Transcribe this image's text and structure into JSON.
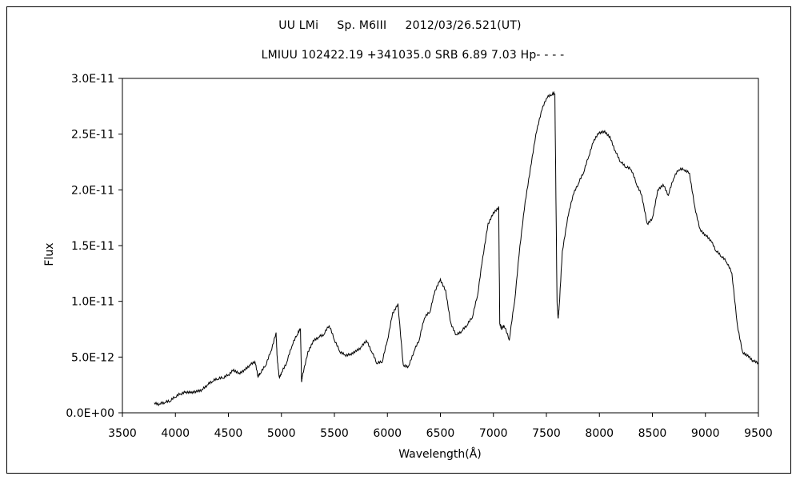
{
  "chart_data": {
    "type": "line",
    "title": "UU LMi     Sp. M6III     2012/03/26.521(UT)",
    "subtitle": "LMIUU 102422.19 +341035.0 SRB 6.89 7.03 Hp- - - -",
    "xlabel": "Wavelength(Å)",
    "ylabel": "Flux",
    "xlim": [
      3500,
      9500
    ],
    "ylim": [
      0,
      3e-11
    ],
    "xticks": [
      "3500",
      "4000",
      "4500",
      "5000",
      "5500",
      "6000",
      "6500",
      "7000",
      "7500",
      "8000",
      "8500",
      "9000",
      "9500"
    ],
    "yticks": [
      "0.0E+00",
      "5.0E-12",
      "1.0E-11",
      "1.5E-11",
      "2.0E-11",
      "2.5E-11",
      "3.0E-11"
    ],
    "grid": false,
    "legend": "none",
    "series": [
      {
        "x": [
          3800,
          3850,
          3900,
          3950,
          4000,
          4050,
          4100,
          4150,
          4200,
          4250,
          4300,
          4350,
          4400,
          4450,
          4500,
          4550,
          4600,
          4650,
          4700,
          4750,
          4780,
          4800,
          4850,
          4900,
          4950,
          4960,
          4980,
          5000,
          5050,
          5100,
          5150,
          5180,
          5190,
          5200,
          5250,
          5300,
          5350,
          5400,
          5450,
          5500,
          5550,
          5600,
          5650,
          5700,
          5750,
          5800,
          5850,
          5900,
          5950,
          6000,
          6050,
          6100,
          6150,
          6200,
          6250,
          6300,
          6350,
          6400,
          6450,
          6500,
          6550,
          6600,
          6650,
          6700,
          6750,
          6800,
          6850,
          6900,
          6950,
          7000,
          7050,
          7060,
          7080,
          7100,
          7150,
          7200,
          7250,
          7300,
          7350,
          7400,
          7450,
          7500,
          7550,
          7580,
          7600,
          7610,
          7620,
          7650,
          7700,
          7750,
          7800,
          7850,
          7900,
          7950,
          8000,
          8050,
          8100,
          8150,
          8200,
          8250,
          8300,
          8350,
          8400,
          8450,
          8500,
          8550,
          8600,
          8650,
          8700,
          8750,
          8800,
          8850,
          8900,
          8950,
          9000,
          9050,
          9100,
          9150,
          9200,
          9250,
          9300,
          9350,
          9400,
          9450,
          9500
        ],
        "y": [
          9e-13,
          8e-13,
          9e-13,
          1e-12,
          1.4e-12,
          1.7e-12,
          1.9e-12,
          1.9e-12,
          2e-12,
          2.1e-12,
          2.5e-12,
          2.8e-12,
          3e-12,
          3.1e-12,
          3.4e-12,
          3.9e-12,
          3.6e-12,
          3.9e-12,
          4.3e-12,
          4.6e-12,
          3.2e-12,
          3.5e-12,
          4.2e-12,
          5.5e-12,
          7.2e-12,
          5e-12,
          3.2e-12,
          3.6e-12,
          4.5e-12,
          6e-12,
          7e-12,
          7.5e-12,
          2.8e-12,
          3.5e-12,
          5.5e-12,
          6.5e-12,
          6.8e-12,
          7e-12,
          7.8e-12,
          6.5e-12,
          5.5e-12,
          5.2e-12,
          5.3e-12,
          5.6e-12,
          5.9e-12,
          6.5e-12,
          5.5e-12,
          4.4e-12,
          4.5e-12,
          6.5e-12,
          9e-12,
          9.8e-12,
          4.3e-12,
          4.2e-12,
          5.5e-12,
          6.5e-12,
          8.5e-12,
          9e-12,
          1.1e-11,
          1.2e-11,
          1.1e-11,
          8e-12,
          7e-12,
          7.3e-12,
          7.8e-12,
          8.5e-12,
          1.05e-11,
          1.4e-11,
          1.7e-11,
          1.8e-11,
          1.85e-11,
          8e-12,
          7.5e-12,
          7.8e-12,
          6.5e-12,
          1e-11,
          1.5e-11,
          1.9e-11,
          2.2e-11,
          2.5e-11,
          2.7e-11,
          2.82e-11,
          2.85e-11,
          2.86e-11,
          1e-11,
          8.5e-12,
          9.5e-12,
          1.45e-11,
          1.75e-11,
          1.95e-11,
          2.05e-11,
          2.15e-11,
          2.3e-11,
          2.45e-11,
          2.52e-11,
          2.53e-11,
          2.48e-11,
          2.35e-11,
          2.25e-11,
          2.2e-11,
          2.18e-11,
          2.05e-11,
          1.95e-11,
          1.7e-11,
          1.75e-11,
          2e-11,
          2.05e-11,
          1.95e-11,
          2.1e-11,
          2.18e-11,
          2.18e-11,
          2.15e-11,
          1.85e-11,
          1.65e-11,
          1.6e-11,
          1.55e-11,
          1.45e-11,
          1.4e-11,
          1.35e-11,
          1.25e-11,
          8e-12,
          5.5e-12,
          5.2e-12,
          4.7e-12,
          4.5e-12
        ]
      }
    ]
  }
}
